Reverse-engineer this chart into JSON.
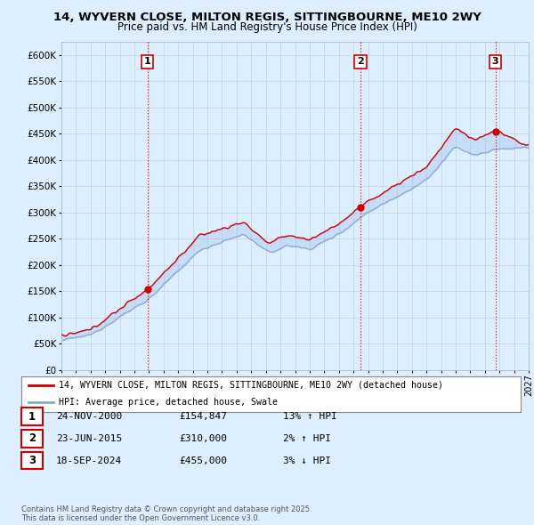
{
  "title": "14, WYVERN CLOSE, MILTON REGIS, SITTINGBOURNE, ME10 2WY",
  "subtitle": "Price paid vs. HM Land Registry's House Price Index (HPI)",
  "bg_color": "#ddeeff",
  "plot_bg_color": "#ddeeff",
  "ylim": [
    0,
    625000
  ],
  "yticks": [
    0,
    50000,
    100000,
    150000,
    200000,
    250000,
    300000,
    350000,
    400000,
    450000,
    500000,
    550000,
    600000
  ],
  "year_start": 1995,
  "year_end": 2027,
  "sale_color": "#cc0000",
  "hpi_color": "#88aacc",
  "sale_label": "14, WYVERN CLOSE, MILTON REGIS, SITTINGBOURNE, ME10 2WY (detached house)",
  "hpi_label": "HPI: Average price, detached house, Swale",
  "transactions": [
    {
      "num": 1,
      "date": "24-NOV-2000",
      "price": 154847,
      "pct": "13%",
      "dir": "↑"
    },
    {
      "num": 2,
      "date": "23-JUN-2015",
      "price": 310000,
      "pct": "2%",
      "dir": "↑"
    },
    {
      "num": 3,
      "date": "18-SEP-2024",
      "price": 455000,
      "pct": "3%",
      "dir": "↓"
    }
  ],
  "footer": "Contains HM Land Registry data © Crown copyright and database right 2025.\nThis data is licensed under the Open Government Licence v3.0.",
  "vline_color": "#cc0000",
  "grid_color": "#c0ccd8"
}
